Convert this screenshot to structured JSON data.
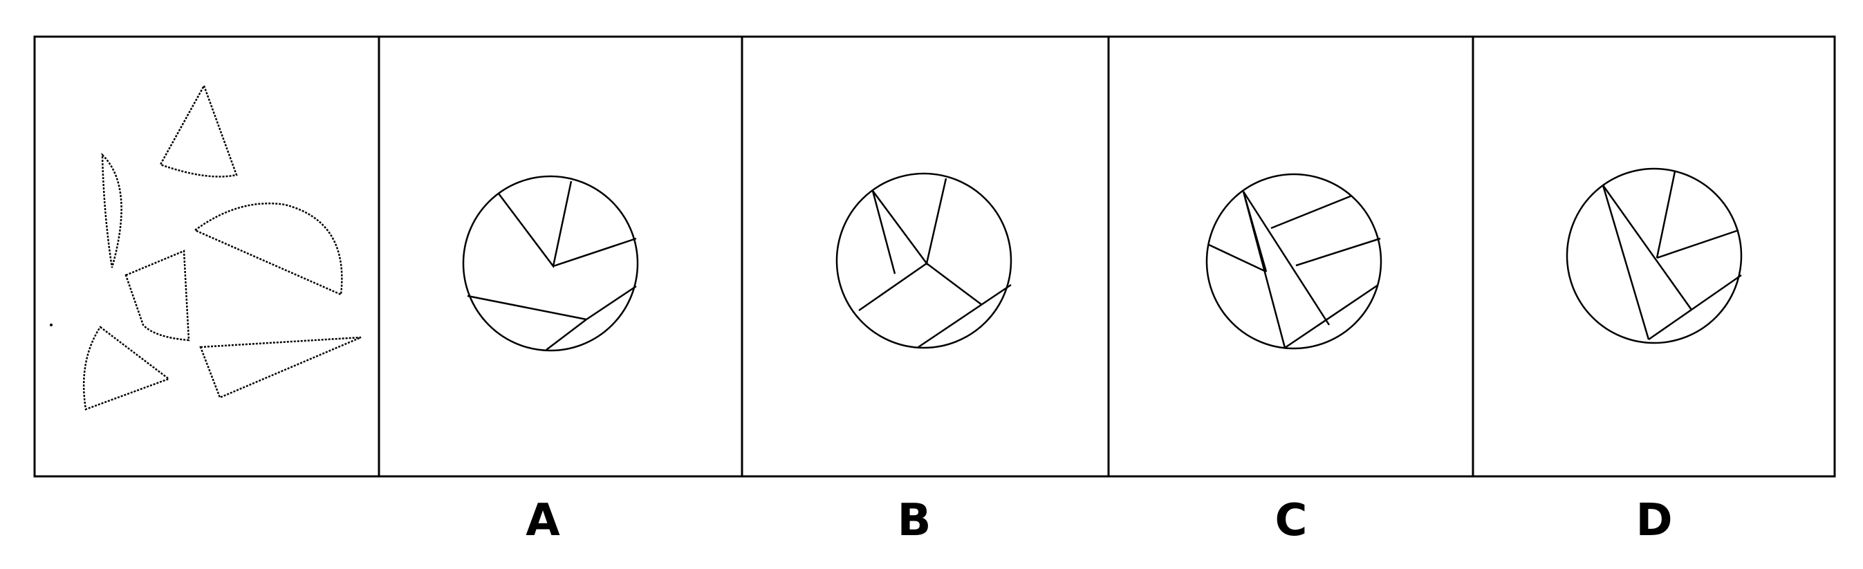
{
  "options": [
    {
      "key": "A",
      "label": "A"
    },
    {
      "key": "B",
      "label": "B"
    },
    {
      "key": "C",
      "label": "C"
    },
    {
      "key": "D",
      "label": "D"
    }
  ],
  "colors": {
    "stroke": "#000000",
    "background": "#ffffff"
  }
}
